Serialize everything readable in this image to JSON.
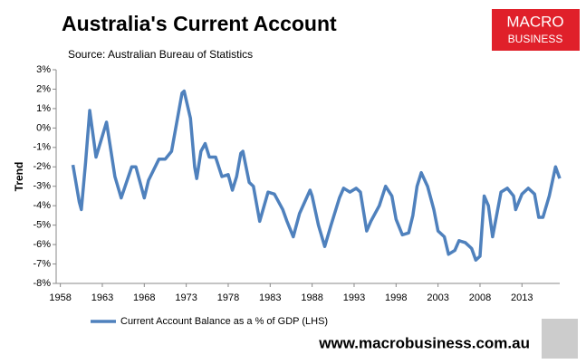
{
  "chart_data": {
    "type": "line",
    "title": "Australia's Current Account",
    "subtitle": "Source: Australian Bureau of Statistics",
    "ylabel": "Trend",
    "brand": [
      "MACRO",
      "BUSINESS"
    ],
    "footer": "www.macrobusiness.com.au",
    "x": [
      1959.5,
      1960.25,
      1960.5,
      1961,
      1961.5,
      1962.25,
      1963.5,
      1964.5,
      1965.25,
      1966.5,
      1967,
      1968,
      1968.5,
      1969.75,
      1970.5,
      1971.25,
      1972.5,
      1972.75,
      1973.5,
      1974,
      1974.25,
      1974.75,
      1975.25,
      1975.75,
      1976.5,
      1977.25,
      1978,
      1978.5,
      1979,
      1979.5,
      1979.75,
      1980.5,
      1981,
      1981.75,
      1982.75,
      1983.5,
      1984.5,
      1985,
      1985.75,
      1986.5,
      1987.75,
      1988,
      1988.75,
      1989.5,
      1990.25,
      1991.25,
      1991.75,
      1992.5,
      1993.25,
      1993.75,
      1994.5,
      1995,
      1996,
      1996.75,
      1997.5,
      1998,
      1998.75,
      1999.5,
      2000,
      2000.5,
      2001,
      2001.75,
      2002.5,
      2003,
      2003.75,
      2004.25,
      2005,
      2005.5,
      2006.25,
      2007,
      2007.5,
      2008,
      2008.5,
      2009,
      2009.5,
      2010.5,
      2011.25,
      2012,
      2012.25,
      2013,
      2013.75,
      2014.5,
      2015,
      2015.5,
      2016.25,
      2017,
      2017.5
    ],
    "series": [
      {
        "name": "Current Account Balance as a % of GDP (LHS)",
        "color": "#4f81bd",
        "values": [
          -1.9,
          -3.8,
          -4.2,
          -1.8,
          0.9,
          -1.5,
          0.3,
          -2.5,
          -3.6,
          -2.0,
          -2.0,
          -3.6,
          -2.7,
          -1.6,
          -1.6,
          -1.2,
          1.8,
          1.9,
          0.5,
          -2.0,
          -2.6,
          -1.2,
          -0.8,
          -1.5,
          -1.5,
          -2.5,
          -2.4,
          -3.2,
          -2.5,
          -1.3,
          -1.2,
          -2.8,
          -3.0,
          -4.8,
          -3.3,
          -3.4,
          -4.2,
          -4.8,
          -5.6,
          -4.4,
          -3.2,
          -3.5,
          -5.0,
          -6.1,
          -5.0,
          -3.6,
          -3.1,
          -3.3,
          -3.1,
          -3.3,
          -5.3,
          -4.8,
          -4.0,
          -3.0,
          -3.5,
          -4.7,
          -5.5,
          -5.4,
          -4.5,
          -3.0,
          -2.3,
          -3.0,
          -4.2,
          -5.3,
          -5.6,
          -6.5,
          -6.3,
          -5.8,
          -5.9,
          -6.2,
          -6.8,
          -6.6,
          -3.5,
          -4.0,
          -5.6,
          -3.3,
          -3.1,
          -3.5,
          -4.2,
          -3.4,
          -3.1,
          -3.4,
          -4.6,
          -4.6,
          -3.5,
          -2.0,
          -2.6
        ]
      }
    ],
    "xlim": [
      1957.5,
      2017.5
    ],
    "xticks": [
      1958,
      1963,
      1968,
      1973,
      1978,
      1983,
      1988,
      1993,
      1998,
      2003,
      2008,
      2013
    ],
    "ylim": [
      -8,
      3
    ],
    "yticks": [
      {
        "value": 3,
        "label": "3%"
      },
      {
        "value": 2,
        "label": "2%"
      },
      {
        "value": 1,
        "label": "1%"
      },
      {
        "value": 0,
        "label": "0%"
      },
      {
        "value": -1,
        "label": "-1%"
      },
      {
        "value": -2,
        "label": "-2%"
      },
      {
        "value": -3,
        "label": "-3%"
      },
      {
        "value": -4,
        "label": "-4%"
      },
      {
        "value": -5,
        "label": "-5%"
      },
      {
        "value": -6,
        "label": "-6%"
      },
      {
        "value": -7,
        "label": "-7%"
      },
      {
        "value": -8,
        "label": "-8%"
      }
    ],
    "grid": false
  }
}
